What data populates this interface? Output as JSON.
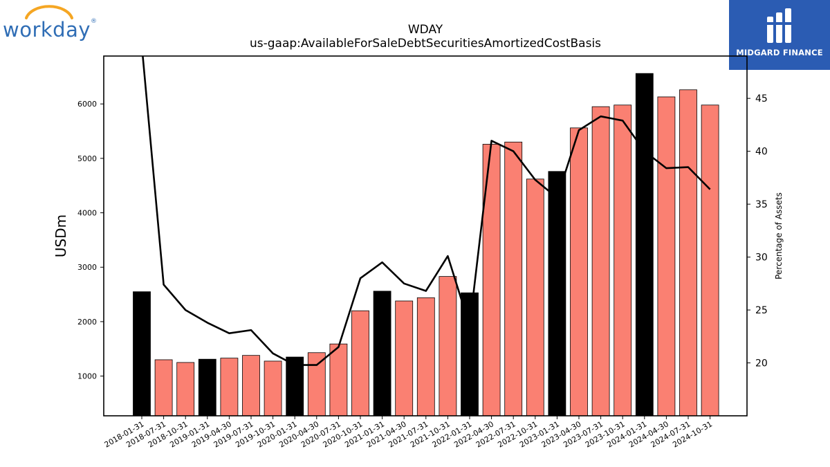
{
  "title": "WDAY",
  "subtitle": "us-gaap:AvailableForSaleDebtSecuritiesAmortizedCostBasis",
  "logos": {
    "left": {
      "text": "workday",
      "trademark": "®"
    },
    "right": {
      "text": "MIDGARD FINANCE"
    }
  },
  "colors": {
    "highlight_bar": "#000000",
    "regular_bar": "#fa8072",
    "line": "#000000"
  },
  "chart_data": {
    "type": "bar",
    "title": "WDAY",
    "subtitle": "us-gaap:AvailableForSaleDebtSecuritiesAmortizedCostBasis",
    "ylabel": "USDm",
    "y2label": "Percentage of Assets",
    "ylim": [
      270,
      6880
    ],
    "y2lim": [
      15,
      49
    ],
    "yticks": [
      1000,
      2000,
      3000,
      4000,
      5000,
      6000
    ],
    "y2ticks": [
      20,
      25,
      30,
      35,
      40,
      45
    ],
    "categories": [
      "2018-01-31",
      "2018-07-31",
      "2018-10-31",
      "2019-01-31",
      "2019-04-30",
      "2019-07-31",
      "2019-10-31",
      "2020-01-31",
      "2020-04-30",
      "2020-07-31",
      "2020-10-31",
      "2021-01-31",
      "2021-04-30",
      "2021-07-31",
      "2021-10-31",
      "2022-01-31",
      "2022-04-30",
      "2022-07-31",
      "2022-10-31",
      "2023-01-31",
      "2023-04-30",
      "2023-07-31",
      "2023-10-31",
      "2024-01-31",
      "2024-04-30",
      "2024-07-31",
      "2024-10-31"
    ],
    "series": [
      {
        "type": "bar",
        "values": [
          2550,
          1300,
          1250,
          1310,
          1330,
          1380,
          1275,
          1350,
          1430,
          1590,
          2200,
          2560,
          2380,
          2440,
          2830,
          2530,
          5260,
          5300,
          4620,
          4760,
          5560,
          5950,
          5980,
          6560,
          6130,
          6260,
          5980
        ],
        "highlight": [
          true,
          false,
          false,
          true,
          false,
          false,
          false,
          true,
          false,
          false,
          false,
          true,
          false,
          false,
          false,
          true,
          false,
          false,
          false,
          true,
          false,
          false,
          false,
          true,
          false,
          false,
          false
        ]
      },
      {
        "type": "line",
        "axis": "right",
        "values": [
          50.0,
          27.4,
          25.0,
          23.8,
          22.8,
          23.1,
          20.9,
          19.8,
          19.8,
          21.5,
          28.0,
          29.5,
          27.5,
          26.8,
          30.1,
          23.5,
          41.0,
          40.0,
          37.3,
          35.6,
          42.0,
          43.3,
          42.9,
          40.0,
          38.4,
          38.5,
          36.4
        ]
      }
    ]
  }
}
